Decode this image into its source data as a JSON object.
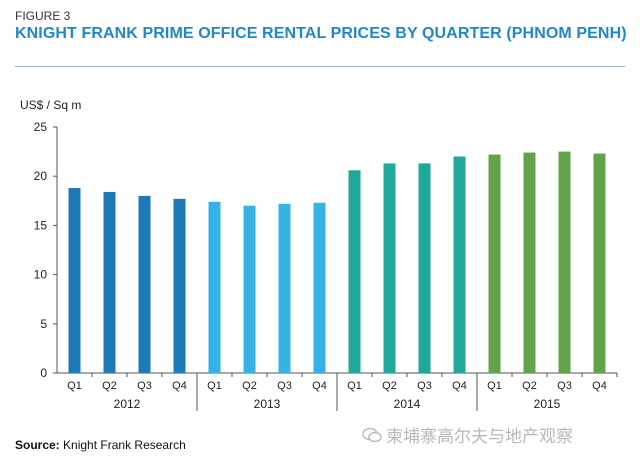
{
  "figure_label": "FIGURE 3",
  "title": "KNIGHT FRANK PRIME OFFICE RENTAL PRICES BY QUARTER (PHNOM PENH)",
  "source_prefix": "Source:",
  "source_text": "Knight Frank Research",
  "watermark": "柬埔寨高尔夫与地产观察",
  "watermark_icon": "wechat-bubble-icon",
  "chart_data": {
    "type": "bar",
    "title": "",
    "ylabel": "US$ / Sq m",
    "xlabel": "",
    "ylim": [
      0,
      25
    ],
    "yticks": [
      0,
      5,
      10,
      15,
      20,
      25
    ],
    "grid": false,
    "years": [
      "2012",
      "2013",
      "2014",
      "2015"
    ],
    "categories": [
      "Q1",
      "Q2",
      "Q3",
      "Q4",
      "Q1",
      "Q2",
      "Q3",
      "Q4",
      "Q1",
      "Q2",
      "Q3",
      "Q4",
      "Q1",
      "Q2",
      "Q3",
      "Q4"
    ],
    "values": [
      18.8,
      18.4,
      18.0,
      17.7,
      17.4,
      17.0,
      17.2,
      17.3,
      20.6,
      21.3,
      21.3,
      22.0,
      22.2,
      22.4,
      22.5,
      22.3
    ],
    "year_colors": [
      "#1f79b9",
      "#35b3e6",
      "#20a89a",
      "#62a347"
    ]
  }
}
